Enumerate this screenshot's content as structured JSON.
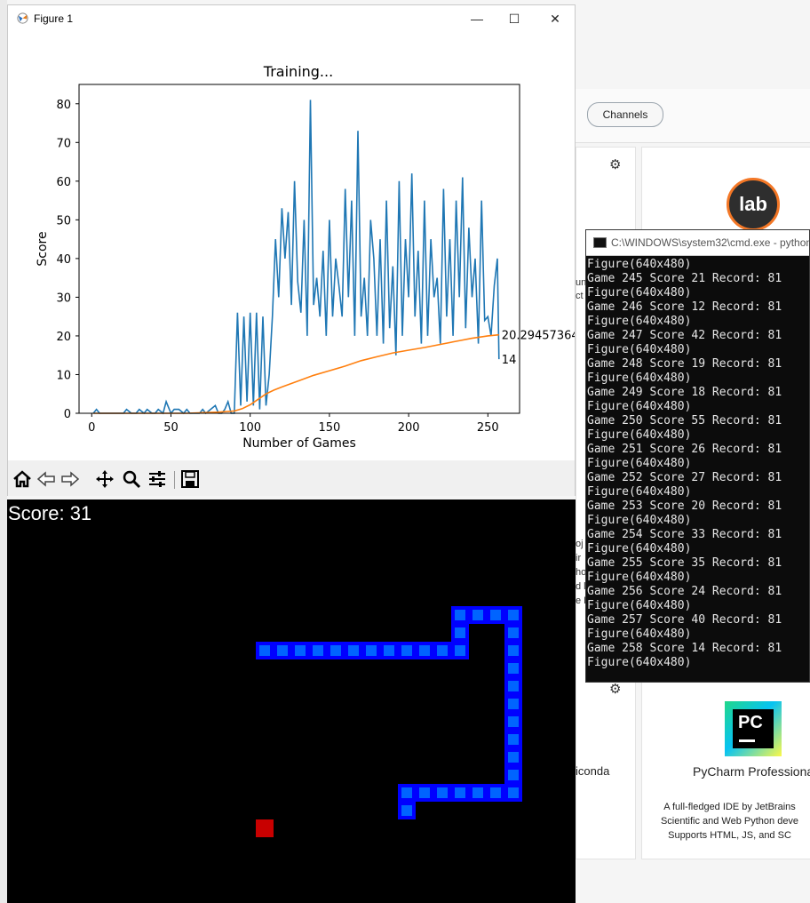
{
  "background_app": {
    "channels_label": "Channels",
    "jupyterlab_logo_text": "lab",
    "pycharm_logo_text": "PC",
    "pycharm_name": "PyCharm Professiona",
    "pycharm_desc_lines": [
      "A full-fledged IDE by JetBrains",
      "Scientific and Web Python deve",
      "Supports HTML, JS, and SC"
    ],
    "anaconda_fragment": "iconda",
    "left_fragments": [
      "un",
      "ct",
      "oj",
      "ir",
      "ho",
      "d l",
      "e D"
    ]
  },
  "cmd": {
    "title": "C:\\WINDOWS\\system32\\cmd.exe - python",
    "lines": [
      "Figure(640x480)",
      "Game 245 Score 21 Record: 81",
      "Figure(640x480)",
      "Game 246 Score 12 Record: 81",
      "Figure(640x480)",
      "Game 247 Score 42 Record: 81",
      "Figure(640x480)",
      "Game 248 Score 19 Record: 81",
      "Figure(640x480)",
      "Game 249 Score 18 Record: 81",
      "Figure(640x480)",
      "Game 250 Score 55 Record: 81",
      "Figure(640x480)",
      "Game 251 Score 26 Record: 81",
      "Figure(640x480)",
      "Game 252 Score 27 Record: 81",
      "Figure(640x480)",
      "Game 253 Score 20 Record: 81",
      "Figure(640x480)",
      "Game 254 Score 33 Record: 81",
      "Figure(640x480)",
      "Game 255 Score 35 Record: 81",
      "Figure(640x480)",
      "Game 256 Score 24 Record: 81",
      "Figure(640x480)",
      "Game 257 Score 40 Record: 81",
      "Figure(640x480)",
      "Game 258 Score 14 Record: 81",
      "Figure(640x480)"
    ]
  },
  "figure": {
    "window_title": "Figure 1",
    "minimize_glyph": "—",
    "maximize_glyph": "☐",
    "close_glyph": "✕",
    "toolbar_icons": [
      "home-icon",
      "back-icon",
      "forward-icon",
      "pan-icon",
      "zoom-icon",
      "configure-subplots-icon",
      "save-icon"
    ]
  },
  "chart_data": {
    "type": "line",
    "title": "Training...",
    "xlabel": "Number of Games",
    "ylabel": "Score",
    "xlim": [
      -8,
      270
    ],
    "ylim": [
      0,
      85
    ],
    "xticks": [
      0,
      50,
      100,
      150,
      200,
      250
    ],
    "yticks": [
      0,
      10,
      20,
      30,
      40,
      50,
      60,
      70,
      80
    ],
    "grid": false,
    "annotations": [
      {
        "text": "20.29457364",
        "x": 257,
        "y": 20.29
      },
      {
        "text": "14",
        "x": 257,
        "y": 14
      }
    ],
    "series": [
      {
        "color": "#1f77b4",
        "x": [
          1,
          3,
          5,
          8,
          12,
          15,
          20,
          22,
          25,
          28,
          30,
          33,
          35,
          38,
          40,
          42,
          45,
          47,
          50,
          52,
          55,
          58,
          60,
          62,
          65,
          68,
          70,
          72,
          75,
          78,
          80,
          82,
          84,
          86,
          88,
          90,
          92,
          94,
          96,
          98,
          100,
          102,
          104,
          106,
          108,
          110,
          112,
          114,
          116,
          118,
          120,
          122,
          124,
          126,
          128,
          130,
          132,
          134,
          136,
          138,
          140,
          142,
          144,
          146,
          148,
          150,
          152,
          154,
          156,
          158,
          160,
          162,
          164,
          166,
          168,
          170,
          172,
          174,
          176,
          178,
          180,
          182,
          184,
          186,
          188,
          190,
          192,
          194,
          196,
          198,
          200,
          202,
          204,
          206,
          208,
          210,
          212,
          214,
          216,
          218,
          220,
          222,
          224,
          226,
          228,
          230,
          232,
          234,
          236,
          238,
          240,
          242,
          244,
          246,
          248,
          250,
          252,
          254,
          256,
          257
        ],
        "values": [
          0,
          1,
          0,
          0,
          0,
          0,
          0,
          1,
          0,
          0,
          1,
          0,
          1,
          0,
          0,
          1,
          0,
          3,
          0,
          1,
          1,
          0,
          1,
          0,
          0,
          0,
          1,
          0,
          1,
          2,
          0,
          0,
          1,
          3,
          0,
          0,
          26,
          2,
          25,
          3,
          26,
          2,
          26,
          1,
          25,
          2,
          10,
          25,
          45,
          30,
          53,
          40,
          52,
          28,
          60,
          34,
          26,
          50,
          20,
          81,
          28,
          35,
          25,
          42,
          20,
          50,
          25,
          40,
          33,
          25,
          58,
          30,
          55,
          20,
          73,
          25,
          35,
          20,
          50,
          40,
          20,
          45,
          18,
          55,
          22,
          38,
          15,
          60,
          20,
          45,
          30,
          62,
          25,
          42,
          18,
          55,
          20,
          45,
          30,
          35,
          18,
          58,
          25,
          45,
          20,
          55,
          30,
          61,
          22,
          48,
          30,
          40,
          18,
          55,
          24,
          25,
          20,
          33,
          40,
          14
        ]
      },
      {
        "color": "#ff7f0e",
        "x": [
          1,
          20,
          40,
          60,
          80,
          90,
          95,
          100,
          105,
          110,
          115,
          120,
          130,
          140,
          150,
          160,
          170,
          180,
          190,
          200,
          210,
          220,
          230,
          240,
          250,
          257
        ],
        "values": [
          0,
          0,
          0,
          0,
          0.3,
          0.6,
          1.2,
          2.2,
          3.6,
          5.0,
          6.0,
          6.8,
          8.3,
          9.8,
          11.0,
          12.2,
          13.6,
          14.6,
          15.6,
          16.3,
          17.0,
          17.8,
          18.6,
          19.4,
          20.0,
          20.29
        ]
      }
    ]
  },
  "game": {
    "score_label": "Score: 31",
    "snake_cells": [
      [
        280,
        160
      ],
      [
        300,
        160
      ],
      [
        320,
        160
      ],
      [
        340,
        160
      ],
      [
        360,
        160
      ],
      [
        380,
        160
      ],
      [
        400,
        160
      ],
      [
        420,
        160
      ],
      [
        440,
        160
      ],
      [
        460,
        160
      ],
      [
        480,
        160
      ],
      [
        500,
        160
      ],
      [
        500,
        140
      ],
      [
        500,
        120
      ],
      [
        520,
        120
      ],
      [
        540,
        120
      ],
      [
        560,
        120
      ],
      [
        560,
        140
      ],
      [
        560,
        160
      ],
      [
        560,
        180
      ],
      [
        560,
        200
      ],
      [
        560,
        220
      ],
      [
        560,
        240
      ],
      [
        560,
        260
      ],
      [
        560,
        280
      ],
      [
        560,
        300
      ],
      [
        560,
        320
      ],
      [
        540,
        320
      ],
      [
        520,
        320
      ],
      [
        500,
        320
      ],
      [
        480,
        320
      ],
      [
        460,
        320
      ],
      [
        440,
        320
      ],
      [
        440,
        340
      ]
    ],
    "food_cell": [
      280,
      360
    ]
  }
}
